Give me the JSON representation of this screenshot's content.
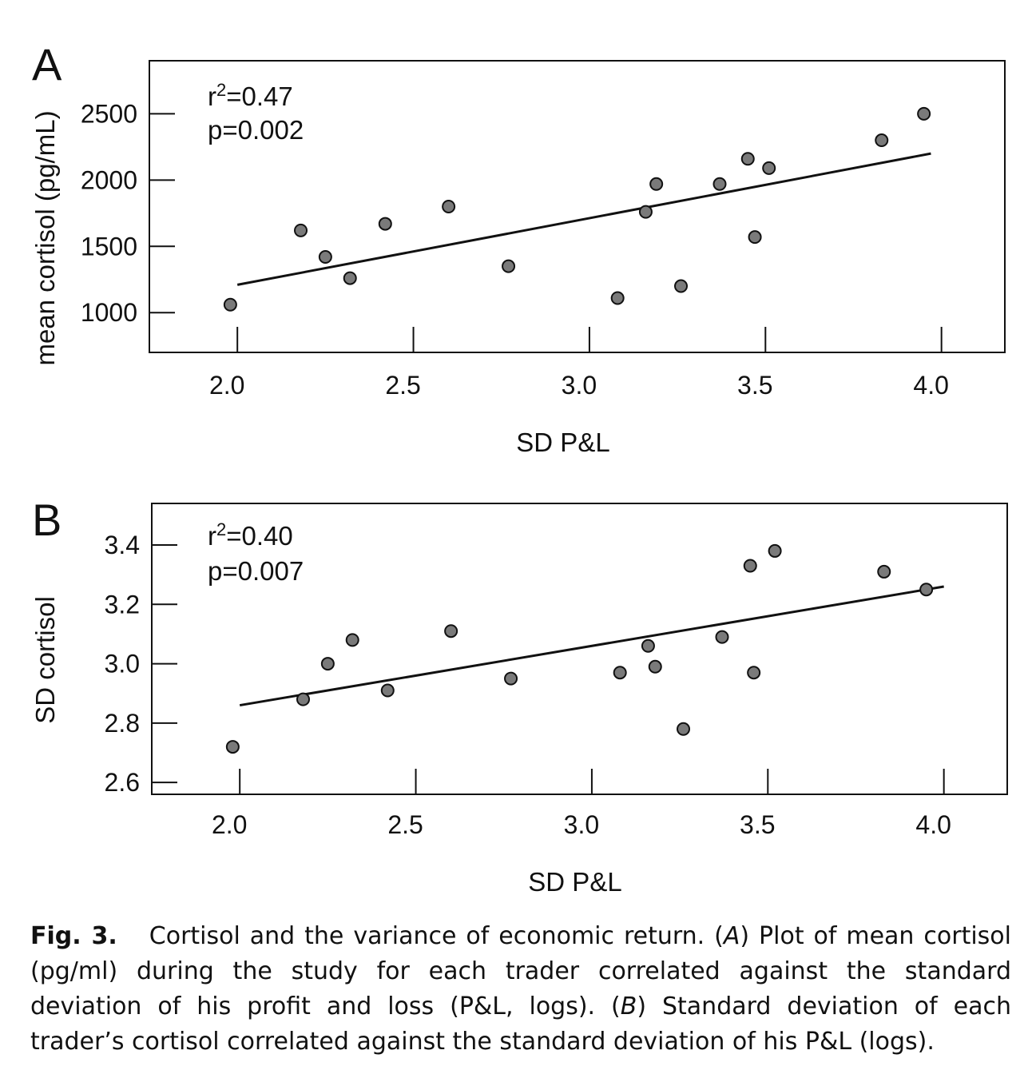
{
  "chart_data": [
    {
      "panel": "A",
      "type": "scatter",
      "xlabel": "SD P&L",
      "ylabel": "mean cortisol (pg/mL)",
      "xlim": [
        1.75,
        4.18
      ],
      "ylim": [
        700,
        2900
      ],
      "xticks": [
        "2.0",
        "2.5",
        "3.0",
        "3.5",
        "4.0"
      ],
      "xtick_values": [
        2.0,
        2.5,
        3.0,
        3.5,
        4.0
      ],
      "yticks": [
        "1000",
        "1500",
        "2000",
        "2500"
      ],
      "ytick_values": [
        1000,
        1500,
        2000,
        2500
      ],
      "annotation": {
        "r2_prefix": "r",
        "r2_sup": "2",
        "r2_value": "=0.47",
        "p": "p=0.002"
      },
      "points": [
        {
          "x": 1.98,
          "y": 1060
        },
        {
          "x": 2.18,
          "y": 1620
        },
        {
          "x": 2.25,
          "y": 1420
        },
        {
          "x": 2.32,
          "y": 1260
        },
        {
          "x": 2.42,
          "y": 1670
        },
        {
          "x": 2.6,
          "y": 1800
        },
        {
          "x": 2.77,
          "y": 1350
        },
        {
          "x": 3.08,
          "y": 1110
        },
        {
          "x": 3.16,
          "y": 1760
        },
        {
          "x": 3.19,
          "y": 1970
        },
        {
          "x": 3.26,
          "y": 1200
        },
        {
          "x": 3.37,
          "y": 1970
        },
        {
          "x": 3.45,
          "y": 2160
        },
        {
          "x": 3.47,
          "y": 1570
        },
        {
          "x": 3.51,
          "y": 2090
        },
        {
          "x": 3.83,
          "y": 2300
        },
        {
          "x": 3.95,
          "y": 2500
        }
      ],
      "fit_line": {
        "x": [
          2.0,
          3.97
        ],
        "y": [
          1210,
          2200
        ]
      }
    },
    {
      "panel": "B",
      "type": "scatter",
      "xlabel": "SD P&L",
      "ylabel": "SD cortisol",
      "xlim": [
        1.75,
        4.18
      ],
      "ylim": [
        2.56,
        3.54
      ],
      "xticks": [
        "2.0",
        "2.5",
        "3.0",
        "3.5",
        "4.0"
      ],
      "xtick_values": [
        2.0,
        2.5,
        3.0,
        3.5,
        4.0
      ],
      "yticks": [
        "2.6",
        "2.8",
        "3.0",
        "3.2",
        "3.4"
      ],
      "ytick_values": [
        2.6,
        2.8,
        3.0,
        3.2,
        3.4
      ],
      "annotation": {
        "r2_prefix": "r",
        "r2_sup": "2",
        "r2_value": "=0.40",
        "p": "p=0.007"
      },
      "points": [
        {
          "x": 1.98,
          "y": 2.72
        },
        {
          "x": 2.18,
          "y": 2.88
        },
        {
          "x": 2.25,
          "y": 3.0
        },
        {
          "x": 2.32,
          "y": 3.08
        },
        {
          "x": 2.42,
          "y": 2.91
        },
        {
          "x": 2.6,
          "y": 3.11
        },
        {
          "x": 2.77,
          "y": 2.95
        },
        {
          "x": 3.08,
          "y": 2.97
        },
        {
          "x": 3.16,
          "y": 3.06
        },
        {
          "x": 3.18,
          "y": 2.99
        },
        {
          "x": 3.26,
          "y": 2.78
        },
        {
          "x": 3.37,
          "y": 3.09
        },
        {
          "x": 3.45,
          "y": 3.33
        },
        {
          "x": 3.46,
          "y": 2.97
        },
        {
          "x": 3.52,
          "y": 3.38
        },
        {
          "x": 3.83,
          "y": 3.31
        },
        {
          "x": 3.95,
          "y": 3.25
        }
      ],
      "fit_line": {
        "x": [
          2.0,
          4.0
        ],
        "y": [
          2.86,
          3.26
        ]
      }
    }
  ],
  "caption": {
    "label": "Fig. 3.",
    "s1": "Cortisol and the variance of economic return. (",
    "a": "A",
    "s2": ") Plot of mean cortisol (pg/ml) during the study for each trader correlated against the standard deviation of his profit and loss (P&L, logs). (",
    "b": "B",
    "s3": ") Standard deviation of each trader’s cortisol correlated against the standard deviation of his P&L (logs)."
  },
  "colors": {
    "marker_fill": "#7a7a7a",
    "marker_stroke": "#111111",
    "line": "#111111"
  }
}
